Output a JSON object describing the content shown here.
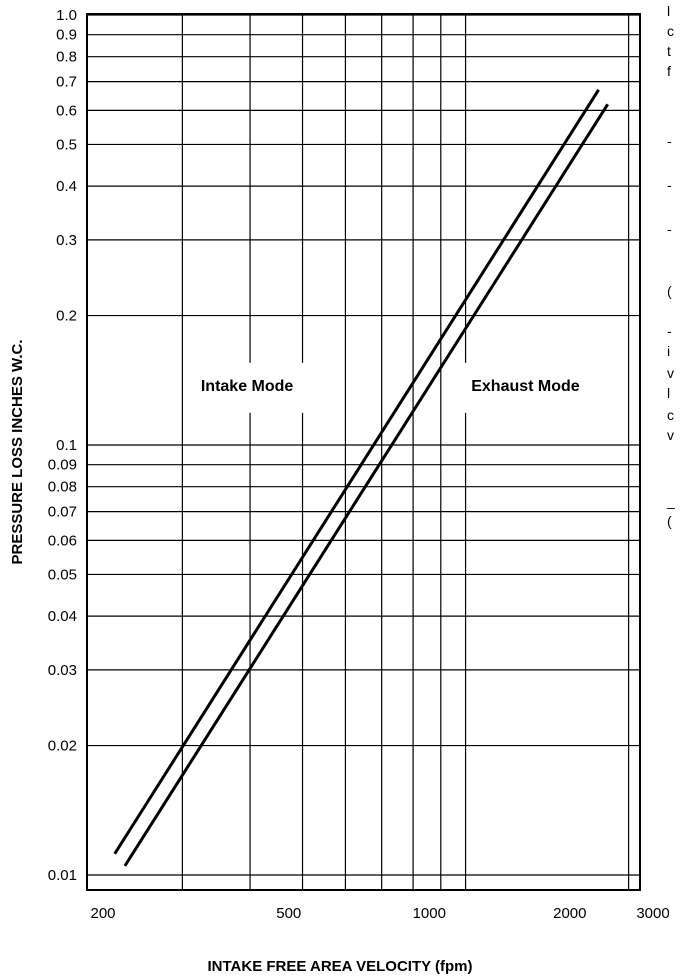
{
  "chart_data": {
    "type": "line",
    "title": "",
    "xlabel": "INTAKE FREE AREA VELOCITY (fpm)",
    "ylabel": "PRESSURE LOSS INCHES  W.C.",
    "x_scale": "log",
    "y_scale": "log",
    "xlim": [
      200,
      3000
    ],
    "ylim": [
      0.01,
      1.0
    ],
    "grid": true,
    "x_ticks": [
      200,
      500,
      1000,
      2000,
      3000
    ],
    "x_tick_labels": [
      "200",
      "500",
      "1000",
      "2000",
      "3000"
    ],
    "x_gridlines": [
      300,
      400,
      500,
      600,
      700,
      800,
      900,
      1000,
      2000
    ],
    "y_ticks": [
      0.01,
      0.02,
      0.03,
      0.04,
      0.05,
      0.06,
      0.07,
      0.08,
      0.09,
      0.1,
      0.2,
      0.3,
      0.4,
      0.5,
      0.6,
      0.7,
      0.8,
      0.9,
      1.0
    ],
    "y_tick_labels": [
      "0.01",
      "0.02",
      "0.03",
      "0.04",
      "0.05",
      "0.06",
      "0.07",
      "0.08",
      "0.09",
      "0.1",
      "0.2",
      "0.3",
      "0.4",
      "0.5",
      "0.6",
      "0.7",
      "0.8",
      "0.9",
      "1.0"
    ],
    "series": [
      {
        "x": [
          225,
          1760
        ],
        "y": [
          0.0112,
          0.67
        ]
      },
      {
        "x": [
          235,
          1830
        ],
        "y": [
          0.0105,
          0.62
        ]
      }
    ],
    "annotations": [
      {
        "text": "Intake Mode",
        "x": 395,
        "y": 0.138
      },
      {
        "text": "Exhaust Mode",
        "x": 1290,
        "y": 0.138
      }
    ],
    "line_color": "#000000"
  },
  "side_text": {
    "lines": [
      "l",
      "c",
      "t",
      "f",
      "-",
      "-",
      "-",
      "(",
      "-",
      "i",
      "v",
      "l",
      "c",
      "v",
      "_",
      "("
    ]
  }
}
